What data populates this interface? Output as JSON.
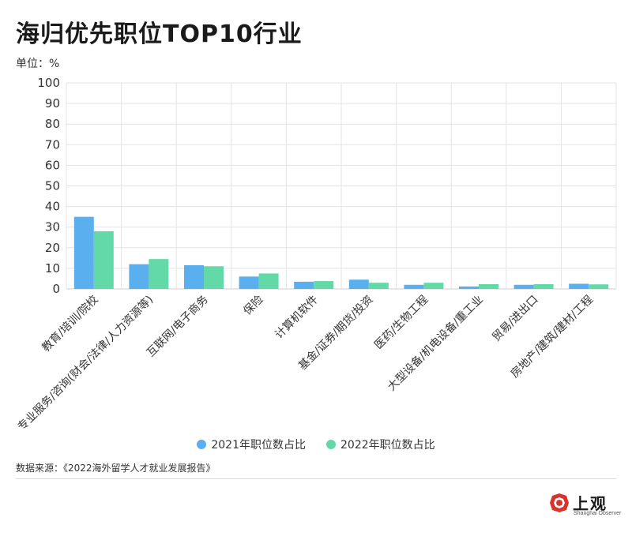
{
  "header": {
    "title": "海归优先职位TOP10行业",
    "unit_label": "单位：%"
  },
  "chart_data": {
    "type": "bar",
    "title": "海归优先职位TOP10行业",
    "ylabel": "单位：%",
    "ylim": [
      0,
      100
    ],
    "yticks": [
      0,
      10,
      20,
      30,
      40,
      50,
      60,
      70,
      80,
      90,
      100
    ],
    "grid": true,
    "legend_position": "bottom",
    "categories": [
      "教育/培训/院校",
      "专业服务/咨询(财会/法律/人力资源等)",
      "互联网/电子商务",
      "保险",
      "计算机软件",
      "基金/证券/期货/投资",
      "医药/生物工程",
      "大型设备/机电设备/重工业",
      "贸易/进出口",
      "房地产/建筑/建材/工程"
    ],
    "series": [
      {
        "name": "2021年职位数占比",
        "color": "#5aafef",
        "values": [
          35,
          12,
          11.5,
          6,
          3.5,
          4.5,
          2,
          1.2,
          2,
          2.5
        ]
      },
      {
        "name": "2022年职位数占比",
        "color": "#64d9a8",
        "values": [
          28,
          14.5,
          11,
          7.5,
          3.8,
          3,
          3,
          2.3,
          2.3,
          2.2
        ]
      }
    ]
  },
  "legend": {
    "items": [
      {
        "label": "2021年职位数占比",
        "color": "#5aafef"
      },
      {
        "label": "2022年职位数占比",
        "color": "#64d9a8"
      }
    ]
  },
  "footer": {
    "source": "数据来源：《2022海外留学人才就业发展报告》"
  },
  "logo": {
    "text": "上观",
    "subtext": "Shanghai Observer",
    "icon": "shanghai-observer-logo-icon",
    "color": "#d9342b"
  }
}
